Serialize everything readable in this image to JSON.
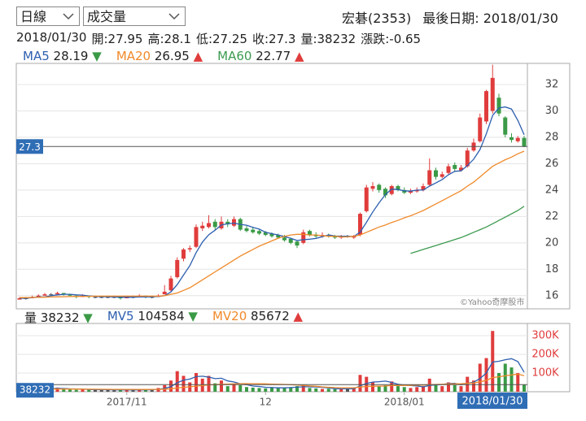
{
  "header": {
    "period": "日線",
    "indicator": "成交量",
    "stock": "宏碁(2353)",
    "last_date_label": "最後日期:",
    "watermark": "©Yahoo奇摩股市"
  },
  "quote": {
    "open_label": "開:",
    "high_label": "高:",
    "low_label": "低:",
    "close_label": "收:",
    "volume_label": "量:",
    "change_label": "漲跌:",
    "change": -0.65
  },
  "chart_data": {
    "type": "candlestick",
    "categories": [
      null,
      null,
      null,
      null,
      null,
      null,
      null,
      null,
      null,
      null,
      null,
      null,
      null,
      null,
      null,
      null,
      null,
      "2017/11",
      null,
      null,
      null,
      null,
      null,
      null,
      null,
      null,
      null,
      null,
      null,
      null,
      null,
      null,
      null,
      null,
      null,
      null,
      null,
      null,
      null,
      "12",
      null,
      null,
      null,
      null,
      null,
      null,
      null,
      null,
      null,
      null,
      null,
      null,
      null,
      null,
      null,
      null,
      null,
      null,
      null,
      null,
      null,
      "2018/01",
      null,
      null,
      null,
      null,
      null,
      null,
      null,
      null,
      null,
      null,
      null,
      null,
      null,
      null,
      null,
      null,
      null,
      null,
      "2018/01/30"
    ],
    "open": [
      15.7,
      15.8,
      15.8,
      15.9,
      16.0,
      16.1,
      16.1,
      16.2,
      16.1,
      16.0,
      15.9,
      16.0,
      15.9,
      15.9,
      15.9,
      15.9,
      15.9,
      15.8,
      15.9,
      15.9,
      16.0,
      15.9,
      15.9,
      16.1,
      16.4,
      17.4,
      18.8,
      19.5,
      19.7,
      21.1,
      21.2,
      21.6,
      21.1,
      21.6,
      21.3,
      21.8,
      21.1,
      21.0,
      20.9,
      20.8,
      20.7,
      20.6,
      20.4,
      20.3,
      20.1,
      20.0,
      20.9,
      20.6,
      20.5,
      20.6,
      20.5,
      20.4,
      20.5,
      20.4,
      20.6,
      22.4,
      24.1,
      24.4,
      24.1,
      23.7,
      24.3,
      24.0,
      23.8,
      23.9,
      24.0,
      24.4,
      25.5,
      25.0,
      25.3,
      25.9,
      25.5,
      25.8,
      27.0,
      27.7,
      29.2,
      30.0,
      31.0,
      29.5,
      28.0,
      27.7,
      27.95
    ],
    "high": [
      15.9,
      15.9,
      16.0,
      16.1,
      16.2,
      16.2,
      16.3,
      16.2,
      16.1,
      16.0,
      16.1,
      16.0,
      16.0,
      16.0,
      16.0,
      16.0,
      15.9,
      16.0,
      16.0,
      16.1,
      16.0,
      16.0,
      16.1,
      16.8,
      17.5,
      18.9,
      19.6,
      19.8,
      21.4,
      21.6,
      22.1,
      21.8,
      22.0,
      21.8,
      22.0,
      21.9,
      21.3,
      21.2,
      21.0,
      20.9,
      20.8,
      20.7,
      20.6,
      20.4,
      20.2,
      21.0,
      21.0,
      20.8,
      20.8,
      20.7,
      20.6,
      20.6,
      20.6,
      20.6,
      22.3,
      24.4,
      24.6,
      24.5,
      24.2,
      24.4,
      24.4,
      24.2,
      24.1,
      24.2,
      24.5,
      26.4,
      25.7,
      25.4,
      26.0,
      26.1,
      25.9,
      27.2,
      27.9,
      29.8,
      31.6,
      33.5,
      31.3,
      29.6,
      28.3,
      28.1,
      28.1
    ],
    "low": [
      15.7,
      15.7,
      15.8,
      15.9,
      16.0,
      16.0,
      16.1,
      16.0,
      15.9,
      15.8,
      15.9,
      15.8,
      15.8,
      15.8,
      15.8,
      15.8,
      15.7,
      15.8,
      15.8,
      15.9,
      15.8,
      15.8,
      15.9,
      16.1,
      16.3,
      17.3,
      18.6,
      19.3,
      19.6,
      20.9,
      21.1,
      21.0,
      21.0,
      21.2,
      21.2,
      20.9,
      20.8,
      20.7,
      20.6,
      20.5,
      20.4,
      20.3,
      20.1,
      19.9,
      19.6,
      19.9,
      20.5,
      20.4,
      20.4,
      20.4,
      20.3,
      20.3,
      20.4,
      20.3,
      20.5,
      22.3,
      23.9,
      23.8,
      23.4,
      23.6,
      23.9,
      23.7,
      23.7,
      23.8,
      23.9,
      24.3,
      24.8,
      24.9,
      25.2,
      25.4,
      25.4,
      25.7,
      26.9,
      27.6,
      29.0,
      29.8,
      29.6,
      28.0,
      27.6,
      27.6,
      27.25
    ],
    "close": [
      15.8,
      15.8,
      15.9,
      16.0,
      16.1,
      16.1,
      16.2,
      16.1,
      16.0,
      15.9,
      16.0,
      15.9,
      15.9,
      15.9,
      15.9,
      15.9,
      15.8,
      15.9,
      15.9,
      16.0,
      15.9,
      15.9,
      16.0,
      16.3,
      17.3,
      18.7,
      19.5,
      19.6,
      21.2,
      21.3,
      21.5,
      21.2,
      21.6,
      21.4,
      21.8,
      21.0,
      20.9,
      20.8,
      20.7,
      20.6,
      20.5,
      20.4,
      20.2,
      20.0,
      19.8,
      20.8,
      20.6,
      20.5,
      20.6,
      20.5,
      20.4,
      20.5,
      20.5,
      20.5,
      22.2,
      24.2,
      24.3,
      24.0,
      23.6,
      24.3,
      24.0,
      23.8,
      23.9,
      24.0,
      24.3,
      25.5,
      25.0,
      25.2,
      25.8,
      25.6,
      25.7,
      27.0,
      27.6,
      29.5,
      31.5,
      32.5,
      29.8,
      28.2,
      27.8,
      27.95,
      27.3
    ],
    "up_color": "#e03c3c",
    "down_color": "#3a9a46",
    "flat_color": "#555555",
    "ylim": [
      15,
      33.6
    ],
    "yticks": [
      16,
      18,
      20,
      22,
      24,
      26,
      28,
      30,
      32
    ],
    "grid": true,
    "ma": [
      {
        "name": "MA5",
        "color": "#2d5fb0",
        "trend": "▼",
        "values": [
          15.8,
          15.8,
          15.85,
          15.9,
          15.9,
          16.0,
          16.06,
          16.1,
          16.1,
          16.06,
          16.04,
          15.98,
          15.94,
          15.92,
          15.92,
          15.9,
          15.88,
          15.88,
          15.88,
          15.9,
          15.9,
          15.92,
          15.94,
          16.0,
          16.28,
          16.84,
          17.56,
          18.28,
          19.26,
          20.06,
          20.62,
          20.96,
          21.36,
          21.44,
          21.5,
          21.4,
          21.34,
          21.18,
          21.04,
          20.8,
          20.7,
          20.6,
          20.48,
          20.34,
          20.18,
          20.24,
          20.28,
          20.34,
          20.46,
          20.6,
          20.52,
          20.5,
          20.5,
          20.48,
          20.82,
          21.56,
          22.34,
          23.04,
          23.66,
          24.08,
          24.04,
          23.94,
          23.92,
          24.0,
          24.0,
          24.3,
          24.54,
          24.8,
          25.16,
          25.42,
          25.46,
          25.86,
          26.34,
          27.08,
          28.26,
          29.66,
          30.22,
          30.3,
          30.14,
          29.27,
          28.19
        ]
      },
      {
        "name": "MA20",
        "color": "#f08a2a",
        "trend": "▲",
        "values": [
          15.85,
          15.85,
          15.86,
          15.87,
          15.88,
          15.9,
          15.91,
          15.92,
          15.93,
          15.94,
          15.95,
          15.95,
          15.96,
          15.96,
          15.96,
          15.96,
          15.96,
          15.96,
          15.96,
          15.96,
          15.96,
          15.96,
          15.96,
          16.0,
          16.1,
          16.2,
          16.4,
          16.6,
          16.9,
          17.2,
          17.5,
          17.8,
          18.1,
          18.4,
          18.7,
          19.0,
          19.25,
          19.5,
          19.75,
          19.95,
          20.15,
          20.35,
          20.5,
          20.6,
          20.65,
          20.65,
          20.6,
          20.6,
          20.55,
          20.5,
          20.5,
          20.45,
          20.45,
          20.5,
          20.6,
          20.8,
          21.0,
          21.2,
          21.35,
          21.55,
          21.7,
          21.9,
          22.05,
          22.25,
          22.45,
          22.7,
          22.95,
          23.2,
          23.45,
          23.7,
          23.95,
          24.3,
          24.6,
          25.0,
          25.4,
          25.8,
          26.05,
          26.3,
          26.5,
          26.75,
          26.95
        ]
      },
      {
        "name": "MA60",
        "color": "#3d9a50",
        "trend": "▲",
        "values": [
          null,
          null,
          null,
          null,
          null,
          null,
          null,
          null,
          null,
          null,
          null,
          null,
          null,
          null,
          null,
          null,
          null,
          null,
          null,
          null,
          null,
          null,
          null,
          null,
          null,
          null,
          null,
          null,
          null,
          null,
          null,
          null,
          null,
          null,
          null,
          null,
          null,
          null,
          null,
          null,
          null,
          null,
          null,
          null,
          null,
          null,
          null,
          null,
          null,
          null,
          null,
          null,
          null,
          null,
          null,
          null,
          null,
          null,
          null,
          null,
          null,
          null,
          19.2,
          19.35,
          19.5,
          19.65,
          19.8,
          19.95,
          20.1,
          20.25,
          20.4,
          20.6,
          20.8,
          21.0,
          21.2,
          21.45,
          21.7,
          21.95,
          22.2,
          22.45,
          22.77
        ]
      }
    ],
    "volume": {
      "name": "量",
      "trend": "▼",
      "ylim": [
        0,
        365000
      ],
      "yticks": [
        {
          "value": 100000,
          "label": "100K"
        },
        {
          "value": 200000,
          "label": "200K"
        },
        {
          "value": 300000,
          "label": "300K"
        }
      ],
      "values": [
        15000,
        12000,
        18000,
        20000,
        16000,
        14000,
        22000,
        15000,
        12000,
        10000,
        13000,
        11000,
        9000,
        12000,
        10000,
        8000,
        11000,
        9000,
        12000,
        10000,
        9000,
        14000,
        20000,
        35000,
        60000,
        110000,
        85000,
        50000,
        100000,
        70000,
        85000,
        45000,
        60000,
        30000,
        40000,
        35000,
        25000,
        22000,
        20000,
        18000,
        25000,
        20000,
        22000,
        25000,
        30000,
        35000,
        20000,
        18000,
        15000,
        16000,
        14000,
        15000,
        18000,
        20000,
        90000,
        80000,
        50000,
        30000,
        35000,
        55000,
        30000,
        25000,
        20000,
        25000,
        30000,
        70000,
        40000,
        30000,
        50000,
        35000,
        30000,
        80000,
        60000,
        150000,
        180000,
        325000,
        100000,
        150000,
        130000,
        100000,
        38232
      ],
      "ma": [
        {
          "name": "MV5",
          "color": "#2d5fb0",
          "trend": "▼",
          "values": [
            15000,
            14000,
            15000,
            16000,
            16200,
            16000,
            18000,
            17400,
            15800,
            14600,
            14400,
            12200,
            11000,
            11000,
            11000,
            10200,
            10000,
            10000,
            10000,
            10000,
            10200,
            10800,
            12800,
            17600,
            27600,
            47800,
            62000,
            68000,
            81000,
            83000,
            78000,
            70000,
            72000,
            58000,
            52000,
            42000,
            38000,
            30400,
            28400,
            24000,
            22000,
            21000,
            21000,
            22000,
            24400,
            26400,
            26400,
            25600,
            23600,
            20800,
            16600,
            15600,
            15600,
            16600,
            31400,
            44600,
            51600,
            54000,
            57000,
            50000,
            40000,
            35000,
            33000,
            31000,
            26000,
            34000,
            37000,
            39000,
            44000,
            45000,
            37000,
            45000,
            51000,
            71000,
            100000,
            159000,
            163000,
            171000,
            177000,
            161000,
            104584
          ]
        },
        {
          "name": "MV20",
          "color": "#f08a2a",
          "trend": "▲",
          "values": [
            13000,
            13000,
            13500,
            14000,
            14000,
            14200,
            14500,
            14500,
            14300,
            14000,
            13800,
            13600,
            13400,
            13200,
            13000,
            12800,
            12700,
            12600,
            12500,
            12400,
            12300,
            12400,
            12800,
            14000,
            16000,
            20000,
            24000,
            26000,
            30000,
            33000,
            37000,
            38000,
            40000,
            41000,
            42000,
            43000,
            43500,
            43000,
            42500,
            42000,
            41000,
            40000,
            39000,
            38000,
            36000,
            34000,
            31000,
            29000,
            26000,
            24000,
            22000,
            21500,
            21500,
            21500,
            25000,
            28000,
            29500,
            30000,
            31000,
            33000,
            33500,
            34000,
            34500,
            35000,
            35500,
            38000,
            39000,
            40000,
            41500,
            42000,
            42500,
            45000,
            47500,
            53000,
            61000,
            76000,
            80000,
            85000,
            90000,
            94000,
            85672
          ]
        }
      ]
    }
  }
}
